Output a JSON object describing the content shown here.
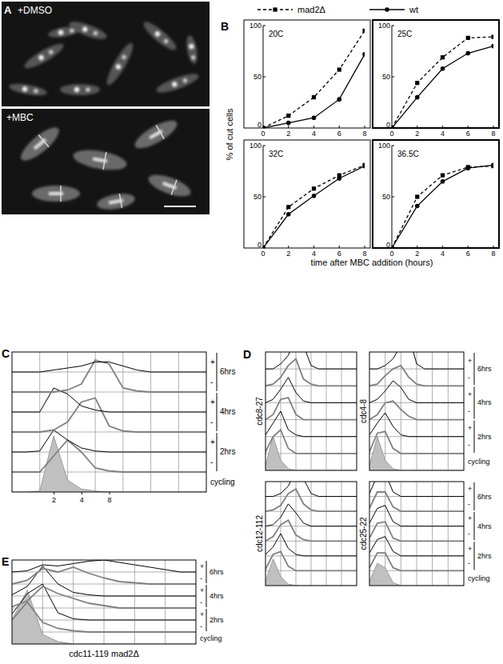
{
  "panel_a": {
    "panel": "A",
    "images": [
      "+DMSO",
      "+MBC"
    ]
  },
  "chart_data": [
    {
      "type": "line",
      "panel": "B",
      "title": "20C",
      "ylabel": "% of cut cells",
      "xlabel": "time after MBC addition (hours)",
      "legend": "top",
      "x": [
        0,
        2,
        4,
        6,
        8
      ],
      "xlim": [
        0,
        8
      ],
      "xticks": [
        0,
        2,
        4,
        6,
        8
      ],
      "ylim": [
        0,
        100
      ],
      "yticks": [
        0,
        50,
        100
      ],
      "series": [
        {
          "name": "mad2Δ",
          "color": "#000000",
          "marker": "square",
          "line_style": "dashed",
          "values": [
            0,
            12,
            30,
            57,
            95
          ]
        },
        {
          "name": "wt",
          "color": "#000000",
          "marker": "circle",
          "line_style": "solid",
          "values": [
            0,
            5,
            10,
            28,
            72
          ]
        }
      ]
    },
    {
      "type": "line",
      "title": "25C",
      "x": [
        0,
        2,
        4,
        6,
        8
      ],
      "xlim": [
        0,
        8
      ],
      "xticks": [
        0,
        2,
        4,
        6,
        8
      ],
      "ylim": [
        0,
        100
      ],
      "yticks": [
        0,
        50,
        100
      ],
      "series": [
        {
          "color": "#000000",
          "marker": "square",
          "line_style": "dashed",
          "values": [
            0,
            44,
            69,
            88,
            89
          ]
        },
        {
          "color": "#000000",
          "marker": "circle",
          "line_style": "solid",
          "values": [
            0,
            30,
            58,
            73,
            80
          ]
        }
      ]
    },
    {
      "type": "line",
      "title": "32C",
      "x": [
        0,
        2,
        4,
        6,
        8
      ],
      "xlim": [
        0,
        8
      ],
      "xticks": [
        0,
        2,
        4,
        6,
        8
      ],
      "ylim": [
        0,
        100
      ],
      "yticks": [
        0,
        50,
        100
      ],
      "series": [
        {
          "color": "#000000",
          "marker": "square",
          "line_style": "dashed",
          "values": [
            0,
            40,
            58,
            71,
            81
          ]
        },
        {
          "color": "#000000",
          "marker": "circle",
          "line_style": "solid",
          "values": [
            0,
            33,
            51,
            68,
            80
          ]
        }
      ]
    },
    {
      "type": "line",
      "title": "36.5C",
      "x": [
        0,
        2,
        4,
        6,
        8
      ],
      "xlim": [
        0,
        8
      ],
      "xticks": [
        0,
        2,
        4,
        6,
        8
      ],
      "ylim": [
        0,
        100
      ],
      "yticks": [
        0,
        50,
        100
      ],
      "series": [
        {
          "color": "#000000",
          "marker": "square",
          "line_style": "dashed",
          "values": [
            0,
            50,
            71,
            79,
            80
          ]
        },
        {
          "color": "#000000",
          "marker": "circle",
          "line_style": "solid",
          "values": [
            0,
            41,
            65,
            78,
            81
          ]
        }
      ]
    },
    {
      "type": "ridgeline",
      "panel": "C",
      "log": "x",
      "grid": true,
      "tick_labels": "x",
      "x": [
        0.7,
        0.99,
        1.4,
        1.98,
        2.8,
        3.96,
        5.6,
        7.92,
        11.2,
        15.84,
        22.4,
        31.68,
        44.8,
        63.36,
        89.6
      ],
      "xlim": [
        0.7,
        89.6
      ],
      "xticks": [
        2,
        4,
        8
      ],
      "groups": [
        "2hrs",
        "4hrs",
        "6hrs"
      ],
      "series": [
        {
          "name": "cycling",
          "type": "area",
          "color": "#c0c0c0",
          "values": [
            0,
            0,
            0.05,
            2.8,
            0.6,
            0.15,
            0.05,
            0,
            0,
            0,
            0,
            0,
            0,
            0,
            0
          ]
        },
        {
          "name": "-",
          "color": "#808080",
          "values": [
            0,
            0,
            0,
            0.8,
            1.6,
            1.0,
            0.2,
            0.05,
            0,
            0,
            0,
            0,
            0,
            0,
            0
          ]
        },
        {
          "name": "+",
          "color": "#000000",
          "values": [
            0,
            0,
            0.05,
            1.1,
            0.6,
            0.2,
            0.05,
            0,
            0,
            0,
            0,
            0,
            0,
            0,
            0
          ]
        },
        {
          "name": "-",
          "color": "#808080",
          "values": [
            0,
            0,
            0,
            0.1,
            0.5,
            1.5,
            1.7,
            0.3,
            0.05,
            0,
            0,
            0,
            0,
            0,
            0
          ]
        },
        {
          "name": "+",
          "color": "#000000",
          "values": [
            0,
            0,
            0,
            1.2,
            0.9,
            0.3,
            0.1,
            0,
            0,
            0,
            0,
            0,
            0,
            0,
            0
          ]
        },
        {
          "name": "-",
          "color": "#808080",
          "values": [
            0,
            0,
            0,
            0,
            0.1,
            0.4,
            1.6,
            1.4,
            0.2,
            0.05,
            0,
            0,
            0,
            0,
            0
          ]
        },
        {
          "name": "+",
          "color": "#000000",
          "values": [
            0,
            0,
            0,
            0.1,
            0.2,
            0.3,
            0.5,
            0.5,
            0.3,
            0.1,
            0,
            0,
            0,
            0,
            0
          ]
        }
      ]
    },
    {
      "type": "ridgeline",
      "panel": "D",
      "title": "cdc8-27",
      "log": "x",
      "grid": true,
      "tick_labels": false,
      "x": [
        0.7,
        0.99,
        1.4,
        1.98,
        2.8,
        3.96,
        5.6,
        7.92,
        11.2,
        15.84,
        22.4,
        31.68,
        44.8
      ],
      "xlim": [
        0.7,
        44.8
      ],
      "series": [
        {
          "type": "area",
          "color": "#c0c0c0",
          "values": [
            0.3,
            2.0,
            0.6,
            0.1,
            0,
            0,
            0,
            0,
            0,
            0,
            0,
            0,
            0
          ]
        },
        {
          "color": "#808080",
          "values": [
            0.1,
            1.0,
            1.4,
            0.3,
            0,
            0,
            0,
            0,
            0,
            0,
            0,
            0,
            0
          ]
        },
        {
          "color": "#000000",
          "values": [
            0.1,
            0.8,
            1.5,
            0.4,
            0.1,
            0,
            0,
            0,
            0,
            0,
            0,
            0,
            0
          ]
        },
        {
          "color": "#808080",
          "values": [
            0,
            0.3,
            1.2,
            1.3,
            0.3,
            0,
            0,
            0,
            0,
            0,
            0,
            0,
            0
          ]
        },
        {
          "color": "#000000",
          "values": [
            0,
            0.2,
            0.8,
            1.5,
            0.6,
            0.1,
            0,
            0,
            0,
            0,
            0,
            0,
            0
          ]
        },
        {
          "color": "#808080",
          "values": [
            0,
            0.1,
            0.5,
            1.2,
            1.6,
            0.4,
            0.1,
            0,
            0,
            0,
            0,
            0,
            0
          ]
        },
        {
          "color": "#000000",
          "values": [
            0,
            0,
            0.3,
            0.8,
            1.9,
            1.4,
            0.2,
            0,
            0,
            0,
            0,
            0,
            0
          ]
        }
      ]
    },
    {
      "type": "ridgeline",
      "title": "cdc4-8",
      "log": "x",
      "grid": true,
      "tick_labels": false,
      "x": [
        0.7,
        0.99,
        1.4,
        1.98,
        2.8,
        3.96,
        5.6,
        7.92,
        11.2,
        15.84,
        22.4,
        31.68,
        44.8
      ],
      "xlim": [
        0.7,
        44.8
      ],
      "groups": [
        "2hrs",
        "4hrs",
        "6hrs"
      ],
      "series": [
        {
          "name": "cycling",
          "type": "area",
          "color": "#c0c0c0",
          "values": [
            0.3,
            2.0,
            0.6,
            0.1,
            0,
            0,
            0,
            0,
            0,
            0,
            0,
            0,
            0
          ]
        },
        {
          "name": "-",
          "color": "#808080",
          "values": [
            0.1,
            1.2,
            1.3,
            0.3,
            0,
            0,
            0,
            0,
            0,
            0,
            0,
            0,
            0
          ]
        },
        {
          "name": "+",
          "color": "#000000",
          "values": [
            0.1,
            0.8,
            1.4,
            0.6,
            0.1,
            0,
            0,
            0,
            0,
            0,
            0,
            0,
            0
          ]
        },
        {
          "name": "-",
          "color": "#808080",
          "values": [
            0,
            0.3,
            1.0,
            1.1,
            0.6,
            0.2,
            0,
            0,
            0,
            0,
            0,
            0,
            0
          ]
        },
        {
          "name": "+",
          "color": "#000000",
          "values": [
            0,
            0.2,
            0.7,
            1.3,
            0.9,
            0.2,
            0,
            0,
            0,
            0,
            0,
            0,
            0
          ]
        },
        {
          "name": "-",
          "color": "#808080",
          "values": [
            0,
            0.1,
            0.6,
            1.0,
            1.2,
            0.5,
            0.1,
            0,
            0,
            0,
            0,
            0,
            0
          ]
        },
        {
          "name": "+",
          "color": "#000000",
          "values": [
            0,
            0,
            0.2,
            0.6,
            1.4,
            2.0,
            0.3,
            0,
            0,
            0,
            0,
            0,
            0
          ]
        }
      ]
    },
    {
      "type": "ridgeline",
      "title": "cdc12-112",
      "log": "x",
      "grid": true,
      "tick_labels": false,
      "x": [
        0.7,
        0.99,
        1.4,
        1.98,
        2.8,
        3.96,
        5.6,
        7.92,
        11.2,
        15.84,
        22.4,
        31.68,
        44.8
      ],
      "xlim": [
        0.7,
        44.8
      ],
      "series": [
        {
          "type": "area",
          "color": "#c0c0c0",
          "values": [
            0.3,
            1.8,
            0.6,
            0.1,
            0,
            0,
            0,
            0,
            0,
            0,
            0,
            0,
            0
          ]
        },
        {
          "color": "#808080",
          "values": [
            0.1,
            1.1,
            1.3,
            0.3,
            0,
            0,
            0,
            0,
            0,
            0,
            0,
            0,
            0
          ]
        },
        {
          "color": "#000000",
          "values": [
            0.1,
            0.6,
            1.5,
            0.5,
            0.1,
            0,
            0,
            0,
            0,
            0,
            0,
            0,
            0
          ]
        },
        {
          "color": "#808080",
          "values": [
            0,
            0.3,
            1.1,
            1.4,
            0.4,
            0.1,
            0,
            0,
            0,
            0,
            0,
            0,
            0
          ]
        },
        {
          "color": "#000000",
          "values": [
            0,
            0.1,
            0.6,
            1.5,
            0.9,
            0.2,
            0,
            0,
            0,
            0,
            0,
            0,
            0
          ]
        },
        {
          "color": "#808080",
          "values": [
            0,
            0.1,
            0.4,
            1.2,
            1.5,
            0.5,
            0.1,
            0,
            0,
            0,
            0,
            0,
            0
          ]
        },
        {
          "color": "#000000",
          "values": [
            0,
            0,
            0.2,
            0.7,
            1.8,
            1.2,
            0.2,
            0,
            0,
            0,
            0,
            0,
            0
          ]
        }
      ]
    },
    {
      "type": "ridgeline",
      "title": "cdc25-22",
      "log": "x",
      "grid": true,
      "tick_labels": false,
      "x": [
        0.7,
        0.99,
        1.4,
        1.98,
        2.8,
        3.96,
        5.6,
        7.92,
        11.2,
        15.84,
        22.4,
        31.68,
        44.8
      ],
      "xlim": [
        0.7,
        44.8
      ],
      "groups": [
        "2hrs",
        "4hrs",
        "6hrs"
      ],
      "series": [
        {
          "name": "cycling",
          "type": "area",
          "color": "#c0c0c0",
          "values": [
            0.3,
            1.5,
            1.2,
            0.2,
            0,
            0,
            0,
            0,
            0,
            0,
            0,
            0,
            0
          ]
        },
        {
          "name": "-",
          "color": "#808080",
          "values": [
            0.2,
            1.2,
            1.2,
            0.2,
            0,
            0,
            0,
            0,
            0,
            0,
            0,
            0,
            0
          ]
        },
        {
          "name": "+",
          "color": "#000000",
          "values": [
            0.2,
            1.1,
            1.3,
            0.3,
            0,
            0,
            0,
            0,
            0,
            0,
            0,
            0,
            0
          ]
        },
        {
          "name": "-",
          "color": "#808080",
          "values": [
            0.2,
            1.2,
            1.3,
            0.2,
            0,
            0,
            0,
            0,
            0,
            0,
            0,
            0,
            0
          ]
        },
        {
          "name": "+",
          "color": "#000000",
          "values": [
            0.2,
            1.2,
            1.4,
            0.3,
            0,
            0,
            0,
            0,
            0,
            0,
            0,
            0,
            0
          ]
        },
        {
          "name": "-",
          "color": "#808080",
          "values": [
            0.2,
            1.3,
            1.3,
            0.3,
            0,
            0,
            0,
            0,
            0,
            0,
            0,
            0,
            0
          ]
        },
        {
          "name": "+",
          "color": "#000000",
          "values": [
            0.2,
            1.4,
            1.6,
            0.3,
            0,
            0,
            0,
            0,
            0,
            0,
            0,
            0,
            0
          ]
        }
      ]
    },
    {
      "type": "ridgeline",
      "panel": "E",
      "title": "cdc11-119 mad2Δ",
      "log": "x",
      "grid": true,
      "tick_labels": false,
      "x": [
        0.7,
        0.99,
        1.4,
        1.98,
        2.8,
        3.96,
        5.6,
        7.92,
        11.2,
        15.84,
        22.4,
        31.68,
        44.8
      ],
      "xlim": [
        0.7,
        44.8
      ],
      "groups": [
        "2hrs",
        "4hrs",
        "6hrs"
      ],
      "series": [
        {
          "name": "cycling",
          "type": "area",
          "color": "#c0c0c0",
          "values": [
            2.0,
            4.5,
            0.8,
            0.2,
            0,
            0,
            0,
            0,
            0,
            0,
            0,
            0,
            0
          ]
        },
        {
          "name": "-",
          "color": "#808080",
          "values": [
            1.0,
            2.5,
            0.8,
            0.3,
            0.1,
            0,
            0,
            0,
            0,
            0,
            0,
            0,
            0
          ]
        },
        {
          "name": "+",
          "color": "#000000",
          "values": [
            0.5,
            2.2,
            3.0,
            0.6,
            0.1,
            0,
            0,
            0,
            0,
            0,
            0,
            0,
            0
          ]
        },
        {
          "name": "-",
          "color": "#808080",
          "values": [
            0.1,
            0.6,
            1.8,
            1.2,
            0.8,
            0.4,
            0.2,
            0,
            0,
            0,
            0,
            0,
            0
          ]
        },
        {
          "name": "+",
          "color": "#000000",
          "values": [
            0.1,
            0.8,
            2.5,
            1.0,
            0.3,
            0.1,
            0,
            0,
            0,
            0,
            0,
            0,
            0
          ]
        },
        {
          "name": "-",
          "color": "#808080",
          "values": [
            0,
            0.3,
            1.3,
            1.0,
            1.4,
            0.9,
            0.5,
            0.2,
            0.1,
            0,
            0,
            0,
            0
          ]
        },
        {
          "name": "+",
          "color": "#000000",
          "values": [
            0,
            0.1,
            0.6,
            0.5,
            0.7,
            0.9,
            1.0,
            0.8,
            0.6,
            0.4,
            0.2,
            0,
            0
          ]
        }
      ]
    }
  ]
}
